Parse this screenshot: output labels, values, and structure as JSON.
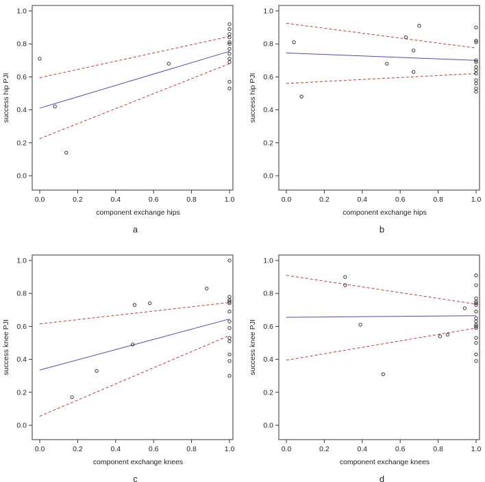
{
  "figure": {
    "colors": {
      "fit": "#4a4ab0",
      "ci": "#c0392b",
      "points": "#222222",
      "axes": "#333333"
    }
  },
  "chart_data": [
    {
      "type": "scatter",
      "panel": "a",
      "xlabel": "component exchange hips",
      "ylabel": "success hip PJI",
      "xlim": [
        0,
        1
      ],
      "ylim": [
        0,
        1
      ],
      "xticks": [
        "0.0",
        "0.2",
        "0.4",
        "0.6",
        "0.8",
        "1.0"
      ],
      "yticks": [
        "0.0",
        "0.2",
        "0.4",
        "0.6",
        "0.8",
        "1.0"
      ],
      "points": [
        {
          "x": 0.0,
          "y": 0.71
        },
        {
          "x": 0.08,
          "y": 0.42
        },
        {
          "x": 0.14,
          "y": 0.14
        },
        {
          "x": 0.68,
          "y": 0.68
        },
        {
          "x": 1.0,
          "y": 0.92
        },
        {
          "x": 1.0,
          "y": 0.89
        },
        {
          "x": 1.0,
          "y": 0.86
        },
        {
          "x": 1.0,
          "y": 0.84
        },
        {
          "x": 1.0,
          "y": 0.81
        },
        {
          "x": 1.0,
          "y": 0.8
        },
        {
          "x": 1.0,
          "y": 0.77
        },
        {
          "x": 1.0,
          "y": 0.74
        },
        {
          "x": 1.0,
          "y": 0.71
        },
        {
          "x": 1.0,
          "y": 0.69
        },
        {
          "x": 1.0,
          "y": 0.57
        },
        {
          "x": 1.0,
          "y": 0.53
        }
      ],
      "fit": [
        [
          0,
          0.41
        ],
        [
          1,
          0.755
        ]
      ],
      "ci_upper": [
        [
          0,
          0.595
        ],
        [
          1,
          0.845
        ]
      ],
      "ci_lower": [
        [
          0,
          0.225
        ],
        [
          1,
          0.68
        ]
      ]
    },
    {
      "type": "scatter",
      "panel": "b",
      "xlabel": "component exchange hips",
      "ylabel": "success hip PJI",
      "xlim": [
        0,
        1
      ],
      "ylim": [
        0,
        1
      ],
      "xticks": [
        "0.0",
        "0.2",
        "0.4",
        "0.6",
        "0.8",
        "1.0"
      ],
      "yticks": [
        "0.0",
        "0.2",
        "0.4",
        "0.6",
        "0.8",
        "1.0"
      ],
      "points": [
        {
          "x": 0.04,
          "y": 0.81
        },
        {
          "x": 0.08,
          "y": 0.48
        },
        {
          "x": 0.53,
          "y": 0.68
        },
        {
          "x": 0.63,
          "y": 0.84
        },
        {
          "x": 0.67,
          "y": 0.76
        },
        {
          "x": 0.67,
          "y": 0.63
        },
        {
          "x": 0.7,
          "y": 0.91
        },
        {
          "x": 1.0,
          "y": 0.9
        },
        {
          "x": 1.0,
          "y": 0.82
        },
        {
          "x": 1.0,
          "y": 0.81
        },
        {
          "x": 1.0,
          "y": 0.7
        },
        {
          "x": 1.0,
          "y": 0.69
        },
        {
          "x": 1.0,
          "y": 0.66
        },
        {
          "x": 1.0,
          "y": 0.64
        },
        {
          "x": 1.0,
          "y": 0.62
        },
        {
          "x": 1.0,
          "y": 0.58
        },
        {
          "x": 1.0,
          "y": 0.56
        },
        {
          "x": 1.0,
          "y": 0.53
        },
        {
          "x": 1.0,
          "y": 0.51
        }
      ],
      "fit": [
        [
          0,
          0.745
        ],
        [
          1,
          0.7
        ]
      ],
      "ci_upper": [
        [
          0,
          0.925
        ],
        [
          1,
          0.775
        ]
      ],
      "ci_lower": [
        [
          0,
          0.56
        ],
        [
          1,
          0.62
        ]
      ]
    },
    {
      "type": "scatter",
      "panel": "c",
      "xlabel": "component exchange knees",
      "ylabel": "success knee PJI",
      "xlim": [
        0,
        1
      ],
      "ylim": [
        0,
        1
      ],
      "xticks": [
        "0.0",
        "0.2",
        "0.4",
        "0.6",
        "0.8",
        "1.0"
      ],
      "yticks": [
        "0.0",
        "0.2",
        "0.4",
        "0.6",
        "0.8",
        "1.0"
      ],
      "points": [
        {
          "x": 0.17,
          "y": 0.17
        },
        {
          "x": 0.3,
          "y": 0.33
        },
        {
          "x": 0.49,
          "y": 0.49
        },
        {
          "x": 0.5,
          "y": 0.73
        },
        {
          "x": 0.58,
          "y": 0.74
        },
        {
          "x": 0.88,
          "y": 0.83
        },
        {
          "x": 1.0,
          "y": 1.0
        },
        {
          "x": 1.0,
          "y": 0.78
        },
        {
          "x": 1.0,
          "y": 0.76
        },
        {
          "x": 1.0,
          "y": 0.75
        },
        {
          "x": 1.0,
          "y": 0.74
        },
        {
          "x": 1.0,
          "y": 0.69
        },
        {
          "x": 1.0,
          "y": 0.63
        },
        {
          "x": 1.0,
          "y": 0.59
        },
        {
          "x": 1.0,
          "y": 0.53
        },
        {
          "x": 1.0,
          "y": 0.51
        },
        {
          "x": 1.0,
          "y": 0.43
        },
        {
          "x": 1.0,
          "y": 0.39
        },
        {
          "x": 1.0,
          "y": 0.3
        }
      ],
      "fit": [
        [
          0,
          0.335
        ],
        [
          1,
          0.645
        ]
      ],
      "ci_upper": [
        [
          0,
          0.615
        ],
        [
          1,
          0.745
        ]
      ],
      "ci_lower": [
        [
          0,
          0.055
        ],
        [
          1,
          0.545
        ]
      ]
    },
    {
      "type": "scatter",
      "panel": "d",
      "xlabel": "component exchange knees",
      "ylabel": "success knee PJI",
      "xlim": [
        0,
        1
      ],
      "ylim": [
        0,
        1
      ],
      "xticks": [
        "0.0",
        "0.2",
        "0.4",
        "0.6",
        "0.8",
        "1.0"
      ],
      "yticks": [
        "0.0",
        "0.2",
        "0.4",
        "0.6",
        "0.8",
        "1.0"
      ],
      "points": [
        {
          "x": 0.31,
          "y": 0.9
        },
        {
          "x": 0.31,
          "y": 0.85
        },
        {
          "x": 0.39,
          "y": 0.61
        },
        {
          "x": 0.51,
          "y": 0.31
        },
        {
          "x": 0.81,
          "y": 0.54
        },
        {
          "x": 0.85,
          "y": 0.55
        },
        {
          "x": 0.94,
          "y": 0.71
        },
        {
          "x": 1.0,
          "y": 0.91
        },
        {
          "x": 1.0,
          "y": 0.85
        },
        {
          "x": 1.0,
          "y": 0.77
        },
        {
          "x": 1.0,
          "y": 0.75
        },
        {
          "x": 1.0,
          "y": 0.74
        },
        {
          "x": 1.0,
          "y": 0.73
        },
        {
          "x": 1.0,
          "y": 0.69
        },
        {
          "x": 1.0,
          "y": 0.65
        },
        {
          "x": 1.0,
          "y": 0.63
        },
        {
          "x": 1.0,
          "y": 0.61
        },
        {
          "x": 1.0,
          "y": 0.6
        },
        {
          "x": 1.0,
          "y": 0.59
        },
        {
          "x": 1.0,
          "y": 0.53
        },
        {
          "x": 1.0,
          "y": 0.5
        },
        {
          "x": 1.0,
          "y": 0.43
        },
        {
          "x": 1.0,
          "y": 0.39
        }
      ],
      "fit": [
        [
          0,
          0.655
        ],
        [
          1,
          0.665
        ]
      ],
      "ci_upper": [
        [
          0,
          0.91
        ],
        [
          1,
          0.735
        ]
      ],
      "ci_lower": [
        [
          0,
          0.395
        ],
        [
          1,
          0.59
        ]
      ]
    }
  ]
}
